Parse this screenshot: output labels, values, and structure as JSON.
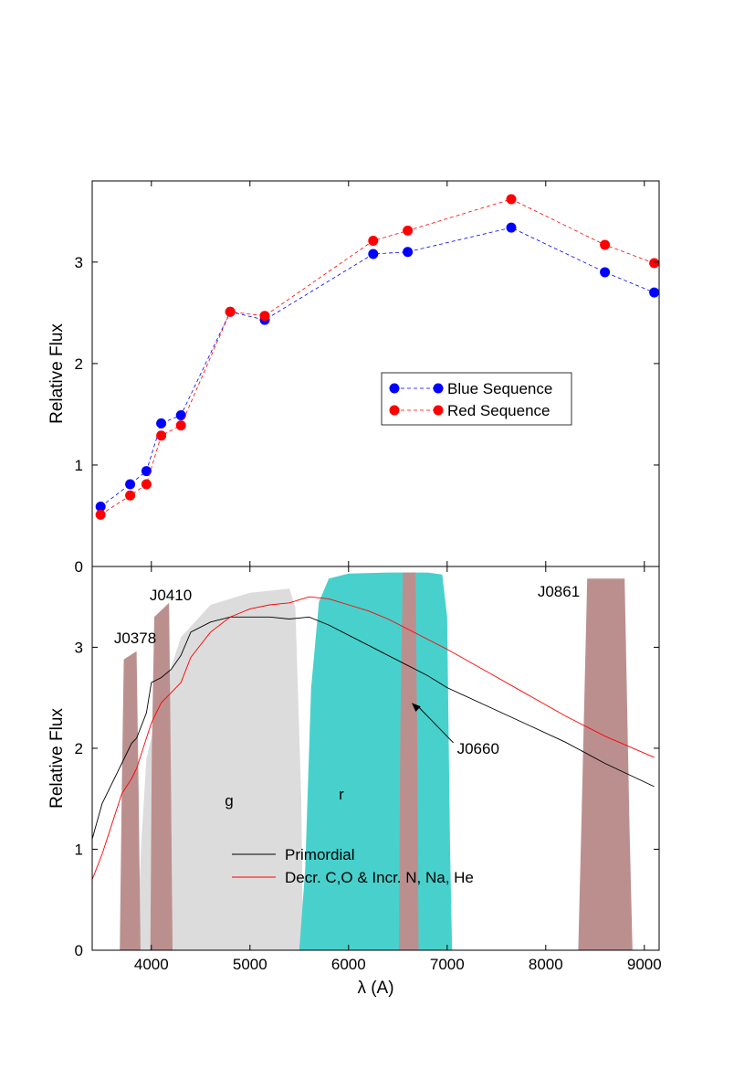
{
  "chart_data": [
    {
      "type": "line",
      "title": "",
      "xlabel": "",
      "ylabel": "Relative Flux",
      "xlim": [
        3400,
        9150
      ],
      "ylim": [
        0,
        3.8
      ],
      "yticks": [
        "0",
        "1",
        "2",
        "3"
      ],
      "markers": "filled circles with dashed connecting lines",
      "legend_position": "center-right",
      "series": [
        {
          "name": "Blue Sequence",
          "color": "#0000ff",
          "x": [
            3485,
            3785,
            3950,
            4100,
            4300,
            4800,
            5150,
            6250,
            6600,
            7650,
            8600,
            9100
          ],
          "y": [
            0.59,
            0.81,
            0.94,
            1.41,
            1.49,
            2.51,
            2.43,
            3.08,
            3.1,
            3.34,
            2.9,
            2.7
          ]
        },
        {
          "name": "Red Sequence",
          "color": "#ff0000",
          "x": [
            3485,
            3785,
            3950,
            4100,
            4300,
            4800,
            5150,
            6250,
            6600,
            7650,
            8600,
            9100
          ],
          "y": [
            0.51,
            0.7,
            0.81,
            1.29,
            1.39,
            2.51,
            2.47,
            3.21,
            3.31,
            3.62,
            3.17,
            2.99
          ]
        }
      ]
    },
    {
      "type": "area",
      "title": "",
      "xlabel": "λ (A)",
      "ylabel": "Relative Flux",
      "xlim": [
        3400,
        9150
      ],
      "ylim": [
        0,
        3.8
      ],
      "xticks": [
        "4000",
        "5000",
        "6000",
        "7000",
        "8000",
        "9000"
      ],
      "yticks": [
        "0",
        "1",
        "2",
        "3"
      ],
      "legend_position": "lower-center",
      "filters": [
        {
          "label": "g",
          "color": "#dcdcdc",
          "x": [
            3850,
            3900,
            3950,
            4100,
            4300,
            4600,
            5000,
            5400,
            5460,
            5520,
            5540
          ],
          "y": [
            0,
            1.1,
            1.9,
            2.5,
            3.1,
            3.42,
            3.54,
            3.58,
            3.4,
            1.5,
            0
          ]
        },
        {
          "label": "r",
          "color": "#48d1cc",
          "x": [
            5500,
            5560,
            5620,
            5700,
            5800,
            6000,
            6400,
            6800,
            6950,
            7000,
            7030,
            7050
          ],
          "y": [
            0,
            0.8,
            2.6,
            3.45,
            3.68,
            3.73,
            3.74,
            3.74,
            3.72,
            3.3,
            1.0,
            0
          ]
        },
        {
          "label": "J0378",
          "color": "#bc8f8f",
          "x": [
            3680,
            3700,
            3720,
            3850,
            3870,
            3890
          ],
          "y": [
            0,
            1.6,
            2.88,
            2.96,
            1.6,
            0
          ]
        },
        {
          "label": "J0410",
          "color": "#bc8f8f",
          "x": [
            3990,
            4005,
            4030,
            4180,
            4195,
            4215
          ],
          "y": [
            0,
            2.0,
            3.3,
            3.44,
            2.0,
            0
          ]
        },
        {
          "label": "J0660",
          "color": "#bc8f8f",
          "x": [
            6510,
            6525,
            6550,
            6680,
            6695,
            6710
          ],
          "y": [
            0,
            2.2,
            3.74,
            3.74,
            2.2,
            0
          ]
        },
        {
          "label": "J0861",
          "color": "#bc8f8f",
          "x": [
            8330,
            8360,
            8420,
            8800,
            8850,
            8880
          ],
          "y": [
            0,
            1.2,
            3.68,
            3.68,
            1.2,
            0
          ]
        }
      ],
      "series": [
        {
          "name": "Primordial",
          "color": "#000000",
          "x": [
            3400,
            3500,
            3600,
            3700,
            3800,
            3850,
            3950,
            4000,
            4100,
            4200,
            4300,
            4400,
            4600,
            4800,
            5000,
            5200,
            5400,
            5600,
            5800,
            6000,
            6200,
            6400,
            6600,
            6800,
            7000,
            7400,
            7800,
            8200,
            8600,
            9100
          ],
          "y": [
            1.1,
            1.45,
            1.65,
            1.85,
            2.05,
            2.1,
            2.35,
            2.65,
            2.7,
            2.78,
            2.92,
            3.15,
            3.25,
            3.3,
            3.3,
            3.3,
            3.28,
            3.3,
            3.22,
            3.12,
            3.02,
            2.92,
            2.82,
            2.72,
            2.6,
            2.42,
            2.24,
            2.06,
            1.85,
            1.62
          ]
        },
        {
          "name": "Decr. C,O & Incr. N, Na, He",
          "color": "#ff0000",
          "x": [
            3400,
            3500,
            3600,
            3700,
            3800,
            3850,
            3950,
            4000,
            4100,
            4200,
            4300,
            4400,
            4600,
            4800,
            5000,
            5200,
            5400,
            5600,
            5800,
            6000,
            6200,
            6400,
            6600,
            6800,
            7000,
            7400,
            7800,
            8200,
            8600,
            9100
          ],
          "y": [
            0.7,
            0.95,
            1.25,
            1.55,
            1.7,
            1.8,
            2.1,
            2.25,
            2.45,
            2.55,
            2.65,
            2.9,
            3.15,
            3.3,
            3.38,
            3.42,
            3.44,
            3.5,
            3.48,
            3.42,
            3.36,
            3.28,
            3.18,
            3.08,
            2.98,
            2.76,
            2.54,
            2.32,
            2.12,
            1.91
          ]
        }
      ],
      "annotations": [
        {
          "text": "J0660",
          "arrow": true,
          "text_at": [
            7100,
            2.0
          ],
          "arrow_to": [
            6640,
            2.45
          ]
        }
      ]
    }
  ]
}
